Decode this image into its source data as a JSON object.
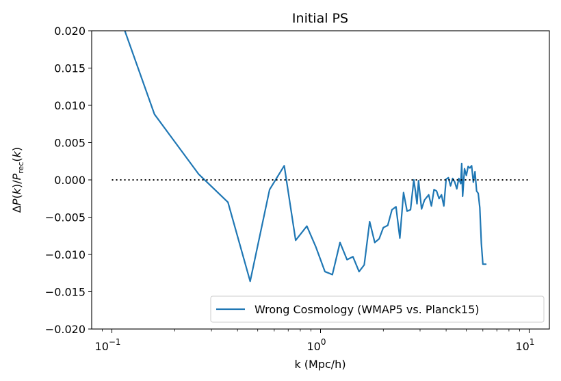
{
  "chart_data": {
    "type": "line",
    "title": "Initial PS",
    "xlabel": "k (Mpc/h)",
    "ylabel": "ΔP(k)/P_rec(k)",
    "xscale": "log",
    "xlim": [
      0.08,
      12.5
    ],
    "ylim": [
      -0.02,
      0.02
    ],
    "xticks": [
      {
        "value": 0.1,
        "base": "10",
        "exp": "−1"
      },
      {
        "value": 1,
        "base": "10",
        "exp": "0"
      },
      {
        "value": 10,
        "base": "10",
        "exp": "1"
      }
    ],
    "yticks": [
      {
        "value": 0.02,
        "label": "0.020"
      },
      {
        "value": 0.015,
        "label": "0.015"
      },
      {
        "value": 0.01,
        "label": "0.010"
      },
      {
        "value": 0.005,
        "label": "0.005"
      },
      {
        "value": 0.0,
        "label": "0.000"
      },
      {
        "value": -0.005,
        "label": "−0.005"
      },
      {
        "value": -0.01,
        "label": "−0.010"
      },
      {
        "value": -0.015,
        "label": "−0.015"
      },
      {
        "value": -0.02,
        "label": "−0.020"
      }
    ],
    "legend_position": "lower-right",
    "grid": false,
    "series": [
      {
        "name": "Wrong Cosmology (WMAP5 vs. Planck15)",
        "color": "#1f77b4",
        "style": "solid",
        "x": [
          0.08,
          0.115,
          0.16,
          0.26,
          0.36,
          0.46,
          0.57,
          0.67,
          0.76,
          0.86,
          0.95,
          1.05,
          1.14,
          1.24,
          1.34,
          1.43,
          1.53,
          1.62,
          1.72,
          1.82,
          1.91,
          2.0,
          2.1,
          2.2,
          2.3,
          2.4,
          2.5,
          2.6,
          2.7,
          2.8,
          2.85,
          2.9,
          2.95,
          3.05,
          3.15,
          3.3,
          3.4,
          3.5,
          3.6,
          3.7,
          3.8,
          3.9,
          4.0,
          4.1,
          4.2,
          4.3,
          4.4,
          4.5,
          4.6,
          4.7,
          4.75,
          4.8,
          4.9,
          5.0,
          5.1,
          5.2,
          5.3,
          5.4,
          5.5,
          5.6,
          5.7,
          5.8,
          5.9,
          6.0,
          6.1,
          6.2
        ],
        "y": [
          0.027,
          0.0201,
          0.0088,
          0.0008,
          -0.003,
          -0.0136,
          -0.0013,
          0.0019,
          -0.0081,
          -0.0062,
          -0.009,
          -0.0123,
          -0.0127,
          -0.0084,
          -0.0107,
          -0.0103,
          -0.0123,
          -0.0114,
          -0.0056,
          -0.0084,
          -0.0079,
          -0.0064,
          -0.0061,
          -0.004,
          -0.0036,
          -0.0078,
          -0.0017,
          -0.0042,
          -0.004,
          0.0,
          -0.0015,
          -0.0032,
          -0.0001,
          -0.0039,
          -0.0027,
          -0.002,
          -0.0035,
          -0.0013,
          -0.0015,
          -0.0025,
          -0.002,
          -0.0035,
          0.0001,
          0.0003,
          -0.0008,
          0.0002,
          -0.0003,
          -0.0012,
          0.0002,
          -0.0005,
          0.0022,
          -0.0022,
          0.0015,
          0.0006,
          0.0018,
          0.0016,
          0.0019,
          -0.0003,
          0.0011,
          -0.0015,
          -0.0018,
          -0.0037,
          -0.0085,
          -0.0113,
          -0.0113,
          -0.0113
        ]
      },
      {
        "color": "#000000",
        "style": "dotted",
        "x": [
          0.1,
          10
        ],
        "y": [
          0.0,
          0.0
        ]
      }
    ]
  }
}
